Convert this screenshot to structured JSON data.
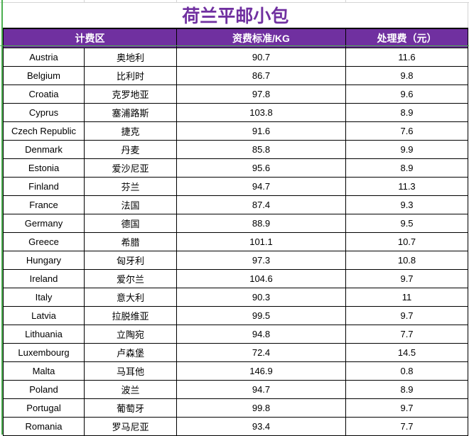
{
  "title": "荷兰平邮小包",
  "colors": {
    "accent": "#7030a0",
    "selection": "#4caf50"
  },
  "headers": {
    "zone": "计费区",
    "rate": "资费标准/KG",
    "fee": "处理费（元）"
  },
  "rows": [
    {
      "en": "Austria",
      "zh": "奥地利",
      "rate": "90.7",
      "fee": "11.6"
    },
    {
      "en": "Belgium",
      "zh": "比利时",
      "rate": "86.7",
      "fee": "9.8"
    },
    {
      "en": "Croatia",
      "zh": "克罗地亚",
      "rate": "97.8",
      "fee": "9.6"
    },
    {
      "en": "Cyprus",
      "zh": "塞浦路斯",
      "rate": "103.8",
      "fee": "8.9"
    },
    {
      "en": "Czech Republic",
      "zh": "捷克",
      "rate": "91.6",
      "fee": "7.6"
    },
    {
      "en": "Denmark",
      "zh": "丹麦",
      "rate": "85.8",
      "fee": "9.9"
    },
    {
      "en": "Estonia",
      "zh": "爱沙尼亚",
      "rate": "95.6",
      "fee": "8.9"
    },
    {
      "en": "Finland",
      "zh": "芬兰",
      "rate": "94.7",
      "fee": "11.3"
    },
    {
      "en": "France",
      "zh": "法国",
      "rate": "87.4",
      "fee": "9.3"
    },
    {
      "en": "Germany",
      "zh": "德国",
      "rate": "88.9",
      "fee": "9.5"
    },
    {
      "en": "Greece",
      "zh": "希腊",
      "rate": "101.1",
      "fee": "10.7"
    },
    {
      "en": "Hungary",
      "zh": "匈牙利",
      "rate": "97.3",
      "fee": "10.8"
    },
    {
      "en": "Ireland",
      "zh": "爱尔兰",
      "rate": "104.6",
      "fee": "9.7"
    },
    {
      "en": "Italy",
      "zh": "意大利",
      "rate": "90.3",
      "fee": "11"
    },
    {
      "en": "Latvia",
      "zh": "拉脱维亚",
      "rate": "99.5",
      "fee": "9.7"
    },
    {
      "en": "Lithuania",
      "zh": "立陶宛",
      "rate": "94.8",
      "fee": "7.7"
    },
    {
      "en": "Luxembourg",
      "zh": "卢森堡",
      "rate": "72.4",
      "fee": "14.5"
    },
    {
      "en": "Malta",
      "zh": "马耳他",
      "rate": "146.9",
      "fee": "0.8"
    },
    {
      "en": "Poland",
      "zh": "波兰",
      "rate": "94.7",
      "fee": "8.9"
    },
    {
      "en": "Portugal",
      "zh": "葡萄牙",
      "rate": "99.8",
      "fee": "9.7"
    },
    {
      "en": "Romania",
      "zh": "罗马尼亚",
      "rate": "93.4",
      "fee": "7.7"
    }
  ]
}
